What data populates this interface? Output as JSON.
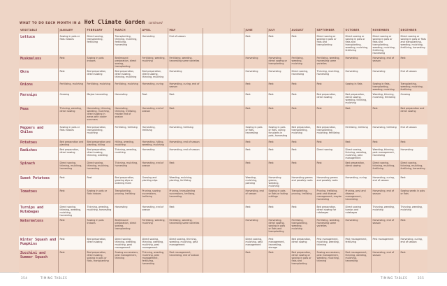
{
  "header": {
    "lead": "WHAT TO DO EACH MONTH IN A",
    "highlight": "Hot Climate Garden",
    "suffix": "continued"
  },
  "table": {
    "columns": [
      "VEGETABLE",
      "JANUARY",
      "FEBRUARY",
      "MARCH",
      "APRIL",
      "MAY",
      "JUNE",
      "JULY",
      "AUGUST",
      "SEPTEMBER",
      "OCTOBER",
      "NOVEMBER",
      "DECEMBER"
    ],
    "rows": [
      {
        "name": "Lettuce",
        "cells": [
          "Sowing in pots or flats indoors",
          "Direct sowing, transplanting, fertilizing",
          "Transplanting, thinning, mulching, fertilizing, harvesting",
          "Harvesting",
          "End of season",
          "Rest",
          "Rest",
          "Rest",
          "Direct sowing or sowing in pots or flats and transplanting",
          "Direct sowing or sowing in pots or flats and transplanting, weeding, mulching, fertilizing",
          "Direct sowing or sowing in pots or flats and transplanting, weeding, mulching, fertilizing, harvesting",
          "Direct sowing or sowing in pots or flats and transplanting, weeding, mulching, fertilizing, harvesting"
        ]
      },
      {
        "name": "Muskmelons",
        "cells": [
          "Rest",
          "Sowing in pots indoors",
          "Bed/mound preparation, direct sowing, transplanting",
          "Fertilizing, weeding, mulching",
          "Fertilizing, weeding, harvesting some varieties",
          "Harvesting",
          "Harvesting, direct sowing or transplanting",
          "Fertilizing, weeding, mulching",
          "Fertilizing, weeding, harvesting some varieties",
          "Harvesting",
          "Harvesting, end of season",
          "Rest"
        ]
      },
      {
        "name": "Okra",
        "cells": [
          "Rest",
          "Bed preparation, direct sowing",
          "Bed preparation, direct sowing, thinning, mulching",
          "Bed preparation, direct sowing, thinning, mulching",
          "Harvesting",
          "Harvesting",
          "Harvesting",
          "Direct sowing, harvesting",
          "Thinning, mulching, harvesting",
          "Harvesting",
          "Harvesting",
          "End of season"
        ]
      },
      {
        "name": "Onions",
        "cells": [
          "Fertilizing, mulching",
          "Fertilizing, mulching",
          "Fertilizing, mulching",
          "Harvesting, curing",
          "Harvesting, curing, end of season",
          "Rest",
          "Rest",
          "Rest",
          "Rest",
          "Sowing in flats",
          "Sowing in flats, transplanting, weeding, mulching",
          "Transplanting, weeding, mulching, fertilizing"
        ]
      },
      {
        "name": "Parsnips",
        "cells": [
          "Growing",
          "Maybe harvesting",
          "Harvesting",
          "Rest",
          "Rest",
          "Rest",
          "Rest",
          "Rest",
          "Bed preparation, direct sowing",
          "Bed preparation, direct sowing, weeding, thinning, mulching",
          "Weeding, thinning, mulching, fertilizing",
          "Growing"
        ]
      },
      {
        "name": "Peas",
        "cells": [
          "Thinning, weeding, direct sowing",
          "Harvesting, thinning, weeding, mulching, direct sowing in areas with cooler summers",
          "Harvesting, thinning, trellising, maybe end of season",
          "Harvesting, end of season",
          "Rest",
          "Rest",
          "Rest",
          "Rest",
          "Rest",
          "Rest",
          "Rest",
          "Bed preparation and direct sowing"
        ]
      },
      {
        "name": "Peppers and Chiles",
        "cells": [
          "Sowing in pots or flats indoors",
          "Bed preparation, transplanting, mulching",
          "Fertilizing, trellising",
          "Harvesting, trellising",
          "Harvesting, trellising",
          "Sowing in pots or flats, harvesting",
          "Sowing in pots or flats, caring for plants in pots, harvesting",
          "Bed preparation, transplanting, mulching",
          "Bed preparation, transplanting, mulching, fertilizing",
          "Fertilizing, trellising",
          "Harvesting, trellising",
          "End of season"
        ]
      },
      {
        "name": "Potatoes",
        "cells": [
          "Bed preparation and planting",
          "Bed preparation and planting, hilling",
          "Hilling, weeding, mulching",
          "Harvesting, hilling, weeding, mulching",
          "Harvesting, end of season",
          "Rest",
          "Rest",
          "Rest",
          "Rest",
          "Rest",
          "Rest",
          "Rest"
        ]
      },
      {
        "name": "Radishes",
        "cells": [
          "Bed preparation, direct sowing",
          "Bed preparation, direct sowing, thinning, weeding",
          "Thinning, weeding, mulching",
          "Harvesting",
          "Harvesting, end of season",
          "Rest",
          "Rest",
          "Rest",
          "Direct sowing",
          "Direct sowing, thinning, weeding, mulching, pest management",
          "Weeding, thinning, pest management, harvesting",
          "Harvesting"
        ]
      },
      {
        "name": "Spinach",
        "cells": [
          "Direct sowing, thinning, mulching, harvesting",
          "Direct sowing, thinning, mulching, harvesting",
          "Thinning, mulching, harvesting",
          "Harvesting, end of season",
          "Rest",
          "Rest",
          "Rest",
          "Rest",
          "Rest",
          "Bed preparation, direct sowing",
          "Direct sowing, thinning, mulching, fertilizing",
          "Direct sowing, thinning, mulching, fertilizing, harvesting"
        ]
      },
      {
        "name": "Sweet Potatoes",
        "cells": [
          "Rest",
          "Rest",
          "Bed preparation, growing slips or ordering them",
          "Growing and planting slips",
          "Weeding, mulching, planting, fertilizing",
          "Weeding, mulching, planting",
          "Harvesting greens, weeding, mulching",
          "Harvesting greens and possibly roots",
          "Harvesting greens and possibly roots",
          "Harvesting, curing",
          "Harvesting, curing, end of season",
          "Rest"
        ]
      },
      {
        "name": "Tomatoes",
        "cells": [
          "Rest",
          "Sowing in pots or flats indoors",
          "Transplanting, pruning, trellising",
          "Pruning, sowing successions, trellising",
          "Pruning, transplanting successions, trellising, harvesting",
          "Harvesting, end of season",
          "Sowing in pots or flats or taking cuttings",
          "Transplanting, pruning, trellising",
          "Pruning, trellising, pest and disease management, maybe harvesting",
          "Pruning, pest and disease management, harvesting",
          "Harvesting, end of season",
          "Sowing seeds in pots or flats"
        ]
      },
      {
        "name": "Turnips and Rutabagas",
        "cells": [
          "Direct sowing, thinning, weeding, mulching, harvesting",
          "Thinning, weeding, mulching, harvesting",
          "Harvesting",
          "Harvesting, end of season",
          "Rest",
          "Rest",
          "Rest",
          "Rest",
          "Bed preparation, direct sowing for rutabagas",
          "Direct sowing turnips and rutabagas",
          "Thinning, weeding, mulching",
          "Thinning, weeding, mulching"
        ]
      },
      {
        "name": "Watermelons",
        "cells": [
          "Rest",
          "Sowing in pots indoors",
          "Bed/mound preparation, direct sowing, transplanting",
          "Fertilizing, weeding, mulching",
          "Fertilizing, weeding, harvesting some varieties",
          "Harvesting",
          "Harvesting, direct sowing, sowing in pots or flats and transplanting",
          "Fertilizing, transplanting, weeding, mulching",
          "Fertilizing, weeding, harvesting some varieties",
          "Harvesting",
          "Harvesting, end of season",
          "Rest"
        ]
      },
      {
        "name": "Winter Squash and Pumpkins",
        "cells": [
          "Rest",
          "Bed preparation, direct sowing",
          "Direct sowing, thinning, weeding, mulching, pest management",
          "Direct sowing, thinning, weeding, mulching, pest management",
          "Direct sowing, thinning, weeding, mulching, pest management",
          "Direct sowing, mulching, pest management",
          "Pest management, harvesting, storage",
          "Bed preparation, direct sowing",
          "Pest management, mulching, weeding, thinning",
          "Pest management, fertilizing",
          "Pest management",
          "Harvesting, curing, end of season"
        ]
      },
      {
        "name": "Zucchini and Summer Squash",
        "cells": [
          "Rest",
          "Bed preparation, direct sowing, sowing in pots or flats, transplanting",
          "Sowing successions, pest management, thinning",
          "Thinning, weeding, mulching, pest management, fertilizing, harvesting",
          "Pest management, harvesting, end of season",
          "Rest",
          "Rest",
          "Bed preparation, direct sowing or sowing in pots or flats and transplanting",
          "Sowing successions, pest management, weeding, mulching, thinning",
          "Pest management, thinning, weeding, mulching, harvesting",
          "Harvesting, end of season",
          "Rest"
        ]
      }
    ]
  },
  "footer": {
    "left_page_number": "354",
    "left_section": "TIMING TABLES",
    "right_section": "TIMING TABLES",
    "right_page_number": "355"
  }
}
